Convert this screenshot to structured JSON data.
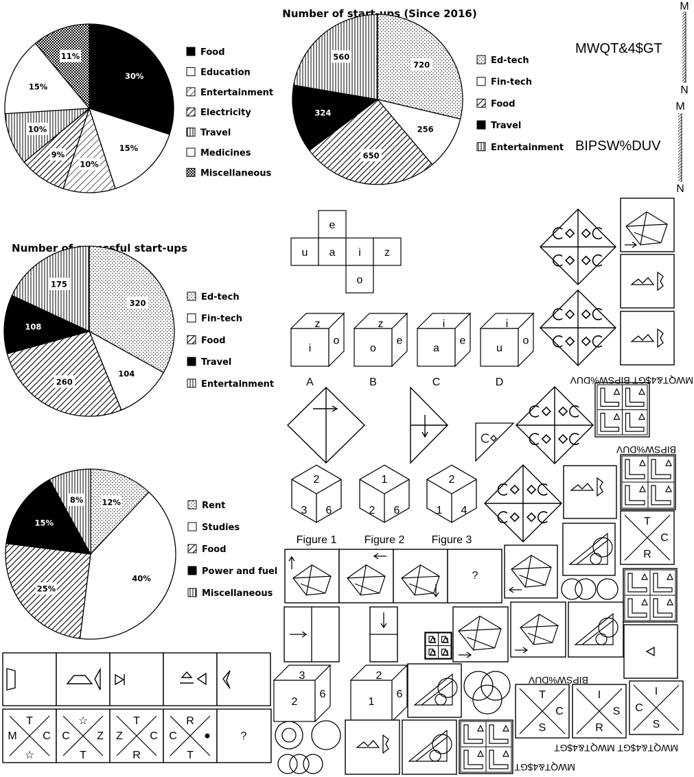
{
  "charts": [
    {
      "title": "",
      "labels": [
        "30%",
        "15%",
        "10%",
        "9%",
        "10%",
        "15%",
        "11%"
      ],
      "legend": [
        "Food",
        "Education",
        "Entertainment",
        "Electricity",
        "Travel",
        "Medicines",
        "Miscellaneous"
      ]
    },
    {
      "title": "Number of start-ups (Since 2016)",
      "labels": [
        "720",
        "256",
        "650",
        "324",
        "560"
      ],
      "legend": [
        "Ed-tech",
        "Fin-tech",
        "Food",
        "Travel",
        "Entertainment"
      ]
    },
    {
      "title": "Number of sucessful start-ups",
      "labels": [
        "320",
        "104",
        "260",
        "108",
        "175"
      ],
      "legend": [
        "Ed-tech",
        "Fin-tech",
        "Food",
        "Travel",
        "Entertainment"
      ]
    },
    {
      "title": "",
      "labels": [
        "12%",
        "40%",
        "25%",
        "15%",
        "8%"
      ],
      "legend": [
        "Rent",
        "Studies",
        "Food",
        "Power and fuel",
        "Miscellaneous"
      ]
    }
  ],
  "chart_data": [
    {
      "type": "pie",
      "categories": [
        "Food",
        "Education",
        "Entertainment",
        "Electricity",
        "Travel",
        "Medicines",
        "Miscellaneous"
      ],
      "values": [
        30,
        15,
        10,
        9,
        10,
        15,
        11
      ],
      "unit": "%"
    },
    {
      "type": "pie",
      "title": "Number of start-ups (Since 2016)",
      "categories": [
        "Ed-tech",
        "Fin-tech",
        "Food",
        "Travel",
        "Entertainment"
      ],
      "values": [
        720,
        256,
        650,
        324,
        560
      ]
    },
    {
      "type": "pie",
      "title": "Number of sucessful start-ups",
      "categories": [
        "Ed-tech",
        "Fin-tech",
        "Food",
        "Travel",
        "Entertainment"
      ],
      "values": [
        320,
        104,
        260,
        108,
        175
      ]
    },
    {
      "type": "pie",
      "categories": [
        "Rent",
        "Studies",
        "Food",
        "Power and fuel",
        "Miscellaneous"
      ],
      "values": [
        12,
        40,
        25,
        15,
        8
      ],
      "unit": "%"
    }
  ],
  "codes": {
    "code1": "MWQT&4$GT",
    "code2": "BIPSW%DUV",
    "axis_m": "M",
    "axis_n": "N",
    "mirror1": "MWQT&4$GT BIPSW%DUV",
    "mirror2": "BIPSW%DUV",
    "mirror3": "BIPSW%DUV",
    "mirror4": "MWQT&4$GT MWQT&4$GT",
    "mirror5": "MWQT&4$GT"
  },
  "net": {
    "top": "e",
    "mid": [
      "u",
      "a",
      "i",
      "z"
    ],
    "bottom": "o"
  },
  "cubes": [
    {
      "top": "z",
      "front": "i",
      "side": "o",
      "label": "A"
    },
    {
      "top": "z",
      "front": "o",
      "side": "e",
      "label": "B"
    },
    {
      "top": "i",
      "front": "a",
      "side": "e",
      "label": "C"
    },
    {
      "top": "i",
      "front": "u",
      "side": "o",
      "label": "D"
    }
  ],
  "dice": [
    {
      "top": "2",
      "left": "3",
      "right": "6",
      "label": "Figure 1"
    },
    {
      "top": "1",
      "left": "2",
      "right": "6",
      "label": "Figure 2"
    },
    {
      "top": "2",
      "left": "1",
      "right": "4",
      "label": "Figure 3"
    }
  ],
  "dice2": [
    {
      "top": "3",
      "front": "2",
      "side": "6"
    },
    {
      "top": "2",
      "front": "1",
      "side": "6"
    }
  ],
  "question": "?",
  "tcr": [
    {
      "top": "T",
      "left": "",
      "right": "C",
      "bottom": "R"
    },
    {
      "top": "T",
      "left": "",
      "right": "C",
      "bottom": "S"
    },
    {
      "top": "I",
      "left": "",
      "right": "S",
      "bottom": "R"
    },
    {
      "top": "I",
      "left": "C",
      "right": "",
      "bottom": "S"
    }
  ],
  "series_bottom": [
    {
      "top": "T",
      "left": "M",
      "right": "C",
      "bottom": "☆"
    },
    {
      "top": "☆",
      "left": "C",
      "right": "Z",
      "bottom": "T"
    },
    {
      "top": "T",
      "left": "Z",
      "right": "C",
      "bottom": "R"
    },
    {
      "top": "R",
      "left": "C",
      "right": "•",
      "bottom": "T"
    }
  ]
}
